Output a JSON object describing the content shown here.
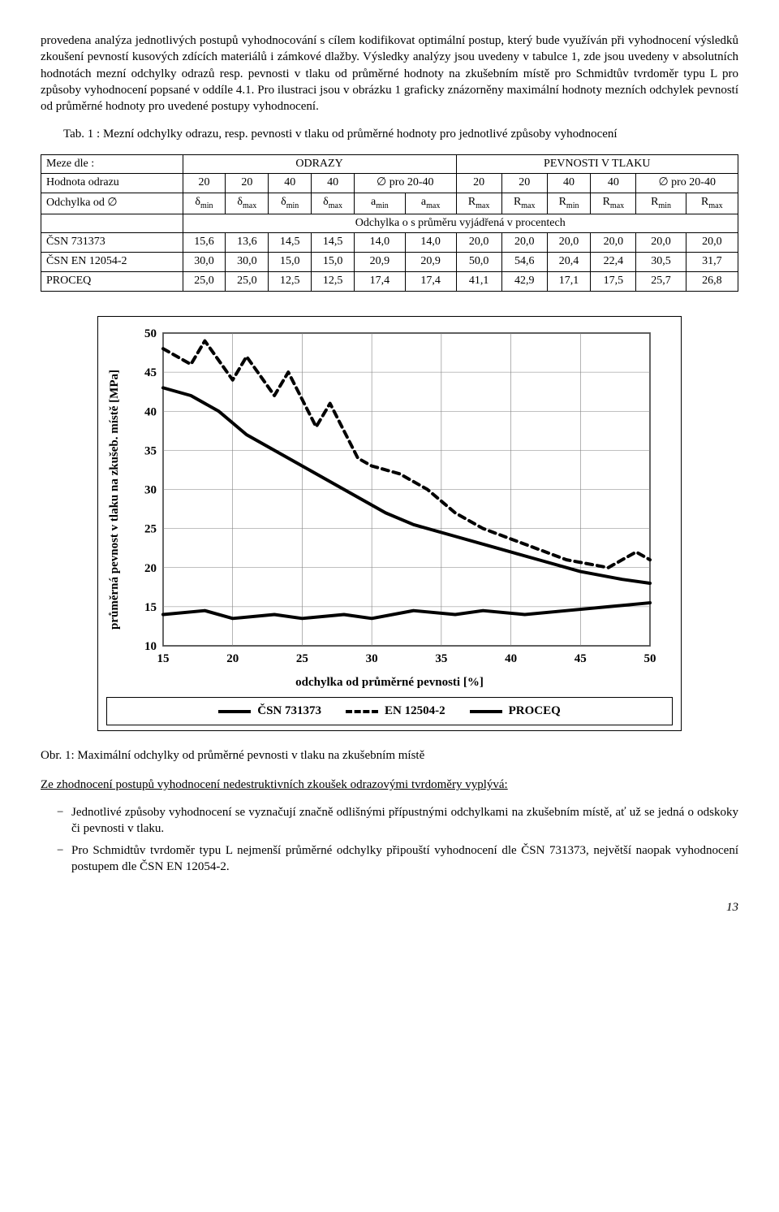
{
  "para1": "provedena analýza jednotlivých postupů vyhodnocování s cílem kodifikovat optimální postup, který bude využíván při vyhodnocení výsledků zkoušení pevností kusových zdících materiálů i zámkové dlažby. Výsledky analýzy jsou uvedeny v tabulce 1, zde jsou uvedeny v absolutních hodnotách mezní odchylky odrazů resp. pevnosti v tlaku od průměrné hodnoty na zkušebním místě pro Schmidtův tvrdoměr typu L pro  způsoby vyhodnocení popsané v oddíle 4.1. Pro ilustraci jsou v obrázku 1 graficky znázorněny  maximální hodnoty mezních odchylek pevností od průměrné hodnoty pro uvedené postupy vyhodnocení.",
  "table_caption": "Tab. 1 : Mezní odchylky odrazu, resp. pevnosti v tlaku od průměrné hodnoty pro jednotlivé způsoby vyhodnocení",
  "table": {
    "h_meze": "Meze dle :",
    "h_odrazy": "ODRAZY",
    "h_pevnosti": "PEVNOSTI V TLAKU",
    "h_hodnota": "Hodnota odrazu",
    "h_odchylka": "Odchylka od ∅",
    "h_procent": "Odchylka o s průměru vyjádřená v procentech",
    "cols20a": "20",
    "cols20b": "20",
    "cols40a": "40",
    "cols40b": "40",
    "opro": "∅ pro 20-40",
    "sym_dmin": "δ",
    "sym_dmax": "δ",
    "sym_amin": "a",
    "sym_amax": "a",
    "sym_rmin": "R",
    "sym_rmax": "R",
    "rows": [
      {
        "name": "ČSN 731373",
        "v": [
          "15,6",
          "13,6",
          "14,5",
          "14,5",
          "14,0",
          "14,0",
          "20,0",
          "20,0",
          "20,0",
          "20,0",
          "20,0",
          "20,0"
        ]
      },
      {
        "name": "ČSN EN 12054-2",
        "v": [
          "30,0",
          "30,0",
          "15,0",
          "15,0",
          "20,9",
          "20,9",
          "50,0",
          "54,6",
          "20,4",
          "22,4",
          "30,5",
          "31,7"
        ]
      },
      {
        "name": "PROCEQ",
        "v": [
          "25,0",
          "25,0",
          "12,5",
          "12,5",
          "17,4",
          "17,4",
          "41,1",
          "42,9",
          "17,1",
          "17,5",
          "25,7",
          "26,8"
        ]
      }
    ]
  },
  "chart": {
    "type": "line",
    "ylabel": "průměrná pevnost v tlaku na zkušeb. místě [MPa]",
    "xlabel": "odchylka od průměrné pevnosti [%]",
    "xlim": [
      15,
      50
    ],
    "ylim": [
      10,
      50
    ],
    "xticks": [
      15,
      20,
      25,
      30,
      35,
      40,
      45,
      50
    ],
    "yticks": [
      10,
      15,
      20,
      25,
      30,
      35,
      40,
      45,
      50
    ],
    "grid_color": "#808080",
    "background": "#ffffff",
    "stroke_width": 4,
    "series": [
      {
        "name": "ČSN 731373",
        "dash": "",
        "points": [
          [
            15,
            14
          ],
          [
            18,
            14.5
          ],
          [
            20,
            13.5
          ],
          [
            23,
            14
          ],
          [
            25,
            13.5
          ],
          [
            28,
            14
          ],
          [
            30,
            13.5
          ],
          [
            33,
            14.5
          ],
          [
            36,
            14
          ],
          [
            38,
            14.5
          ],
          [
            41,
            14
          ],
          [
            44,
            14.5
          ],
          [
            47,
            15
          ],
          [
            50,
            15.5
          ]
        ]
      },
      {
        "name": "EN 12504-2",
        "dash": "8,6",
        "points": [
          [
            15,
            48
          ],
          [
            17,
            46
          ],
          [
            18,
            49
          ],
          [
            20,
            44
          ],
          [
            21,
            47
          ],
          [
            23,
            42
          ],
          [
            24,
            45
          ],
          [
            26,
            38
          ],
          [
            27,
            41
          ],
          [
            29,
            34
          ],
          [
            30,
            33
          ],
          [
            32,
            32
          ],
          [
            34,
            30
          ],
          [
            36,
            27
          ],
          [
            38,
            25
          ],
          [
            41,
            23
          ],
          [
            44,
            21
          ],
          [
            47,
            20
          ],
          [
            49,
            22
          ],
          [
            50,
            21
          ]
        ]
      },
      {
        "name": "PROCEQ",
        "dash": "",
        "points": [
          [
            15,
            43
          ],
          [
            17,
            42
          ],
          [
            19,
            40
          ],
          [
            21,
            37
          ],
          [
            23,
            35
          ],
          [
            25,
            33
          ],
          [
            27,
            31
          ],
          [
            29,
            29
          ],
          [
            31,
            27
          ],
          [
            33,
            25.5
          ],
          [
            36,
            24
          ],
          [
            39,
            22.5
          ],
          [
            42,
            21
          ],
          [
            45,
            19.5
          ],
          [
            48,
            18.5
          ],
          [
            50,
            18
          ]
        ]
      }
    ],
    "legend": [
      "ČSN 731373",
      "EN 12504-2",
      "PROCEQ"
    ]
  },
  "fig_caption": "Obr. 1:  Maximální odchylky od průměrné pevnosti v tlaku na zkušebním místě",
  "conclusion_lead": "Ze zhodnocení postupů vyhodnocení nedestruktivních zkoušek odrazovými tvrdoměry vyplývá:",
  "bullets": [
    "Jednotlivé způsoby vyhodnocení se vyznačují značně odlišnými přípustnými odchylkami na zkušebním místě, ať už se jedná o odskoky či pevnosti v tlaku.",
    "Pro Schmidtův tvrdoměr typu L nejmenší průměrné odchylky připouští vyhodnocení dle ČSN 731373, největší naopak vyhodnocení postupem dle ČSN EN 12054-2."
  ],
  "page": "13"
}
